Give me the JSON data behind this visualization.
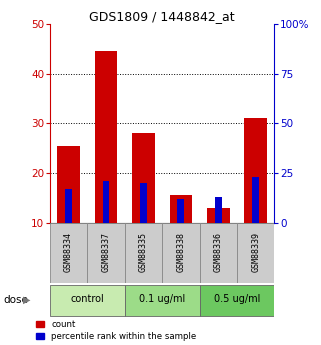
{
  "title": "GDS1809 / 1448842_at",
  "samples": [
    "GSM88334",
    "GSM88337",
    "GSM88335",
    "GSM88338",
    "GSM88336",
    "GSM88339"
  ],
  "count_values": [
    25.5,
    44.5,
    28.0,
    15.5,
    13.0,
    31.0
  ],
  "percentile_values": [
    17,
    21,
    20,
    12,
    13,
    23
  ],
  "groups": [
    {
      "label": "control",
      "indices": [
        0,
        1
      ]
    },
    {
      "label": "0.1 ug/ml",
      "indices": [
        2,
        3
      ]
    },
    {
      "label": "0.5 ug/ml",
      "indices": [
        4,
        5
      ]
    }
  ],
  "bar_width": 0.6,
  "blue_bar_width": 0.18,
  "ylim_left": [
    10,
    50
  ],
  "ylim_right": [
    0,
    100
  ],
  "yticks_left": [
    10,
    20,
    30,
    40,
    50
  ],
  "yticks_right": [
    0,
    25,
    50,
    75,
    100
  ],
  "ytick_labels_right": [
    "0",
    "25",
    "50",
    "75",
    "100%"
  ],
  "count_color": "#cc0000",
  "percentile_color": "#0000cc",
  "grid_yticks": [
    20,
    30,
    40
  ],
  "dose_label": "dose",
  "legend_count": "count",
  "legend_percentile": "percentile rank within the sample",
  "sample_box_color": "#cccccc",
  "group_colors": [
    "#c8ebb0",
    "#9cdc88",
    "#6cc860"
  ]
}
